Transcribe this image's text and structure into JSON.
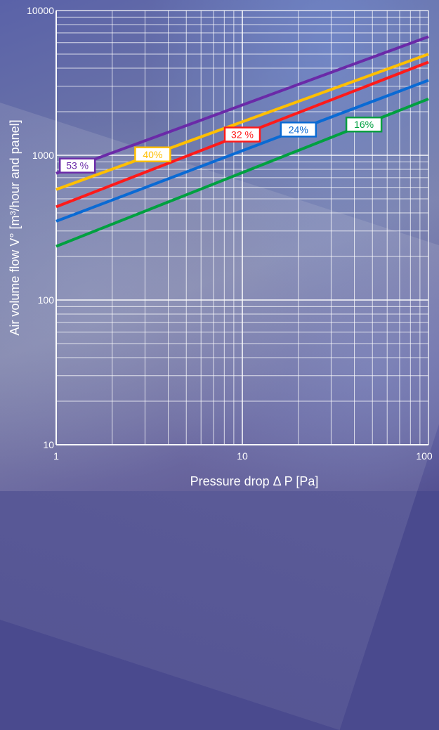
{
  "chart_data": {
    "type": "line",
    "xlabel": "Pressure drop Δ P [Pa]",
    "ylabel": "Air volume flow V° [m³/hour and panel]",
    "x_scale": "log",
    "y_scale": "log",
    "xlim": [
      1,
      100
    ],
    "ylim": [
      10,
      10000
    ],
    "x_ticks": [
      "1",
      "10",
      "100"
    ],
    "y_ticks": [
      "10",
      "100",
      "1000",
      "10000"
    ],
    "grid": true,
    "series": [
      {
        "name": "53 %",
        "color": "#6a2aa8",
        "x": [
          1,
          100
        ],
        "y": [
          750,
          6600
        ]
      },
      {
        "name": "40%",
        "color": "#ffbf00",
        "x": [
          1,
          100
        ],
        "y": [
          580,
          5000
        ]
      },
      {
        "name": "32 %",
        "color": "#ff1a1a",
        "x": [
          1,
          100
        ],
        "y": [
          440,
          4400
        ]
      },
      {
        "name": "24%",
        "color": "#0a6ad4",
        "x": [
          1,
          100
        ],
        "y": [
          350,
          3300
        ]
      },
      {
        "name": "16%",
        "color": "#00a040",
        "x": [
          1,
          100
        ],
        "y": [
          235,
          2450
        ]
      }
    ]
  }
}
